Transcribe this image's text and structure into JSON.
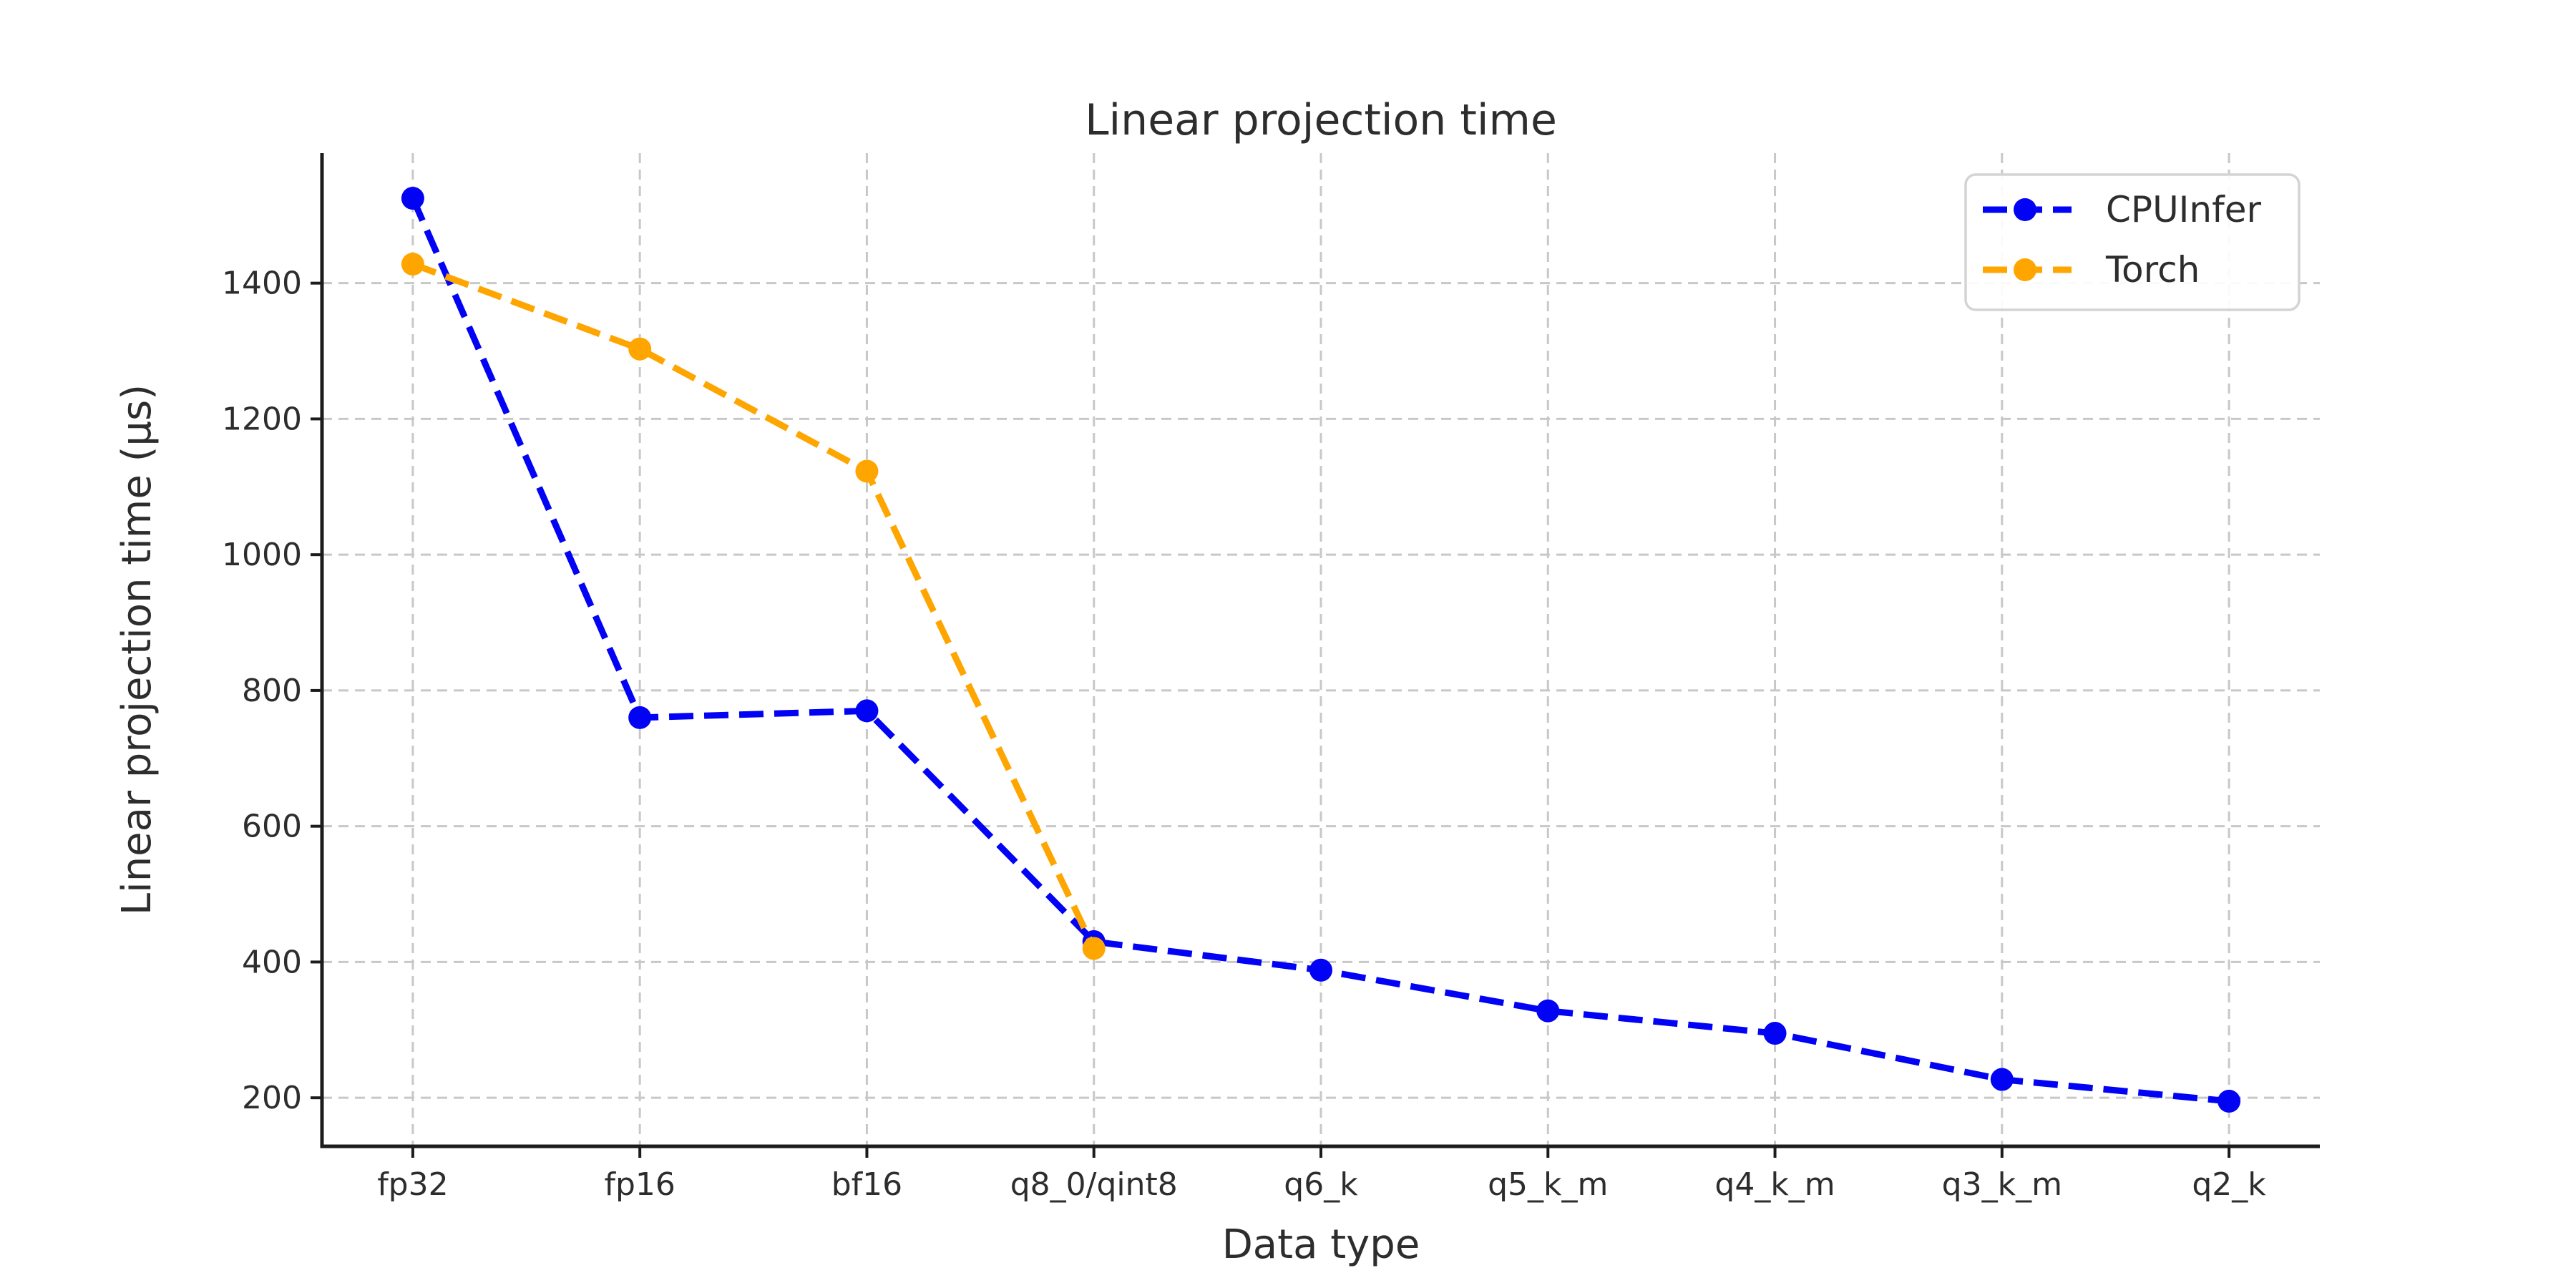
{
  "chart_data": {
    "type": "line",
    "title": "Linear projection time",
    "xlabel": "Data type",
    "ylabel": "Linear projection time (μs)",
    "categories": [
      "fp32",
      "fp16",
      "bf16",
      "q8_0/qint8",
      "q6_k",
      "q5_k_m",
      "q4_k_m",
      "q3_k_m",
      "q2_k"
    ],
    "yticks": [
      200,
      400,
      600,
      800,
      1000,
      1200,
      1400
    ],
    "ylim": [
      128.5,
      1591.5
    ],
    "x_margin_units": 0.4,
    "grid": true,
    "grid_style": "dashed",
    "legend_position": "upper right",
    "line_style": "dashed",
    "marker": "circle",
    "series": [
      {
        "name": "CPUInfer",
        "color": "#0202f5",
        "values": [
          1525,
          760,
          770,
          430,
          388,
          328,
          295,
          227,
          195
        ]
      },
      {
        "name": "Torch",
        "color": "#ffa500",
        "values": [
          1428,
          1303,
          1123,
          420,
          null,
          null,
          null,
          null,
          null
        ]
      }
    ]
  },
  "styling": {
    "background_color": "#ffffff",
    "text_color": "#2d2d2d",
    "axis_color": "#1c1c1c",
    "grid_color": "#c8c8c8",
    "legend_border_color": "#d4d4d4",
    "legend_fill": "#ffffff"
  }
}
